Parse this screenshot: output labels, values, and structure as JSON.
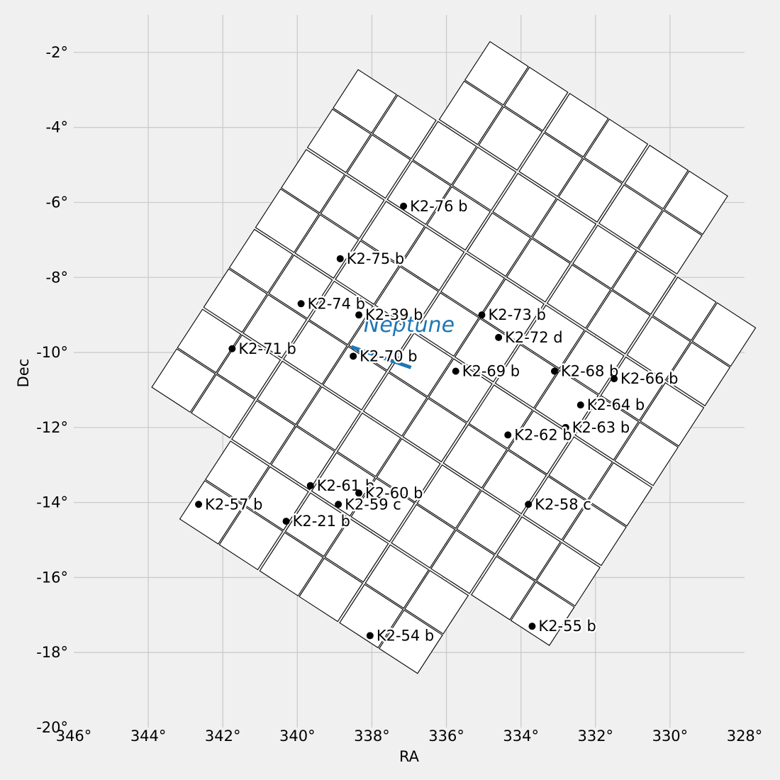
{
  "chart_data": {
    "type": "scatter",
    "title": "",
    "xlabel": "RA",
    "ylabel": "Dec",
    "xlim": [
      346,
      328
    ],
    "ylim": [
      -20,
      -1
    ],
    "x_ticks": [
      346,
      344,
      342,
      340,
      338,
      336,
      334,
      332,
      330,
      328
    ],
    "y_ticks": [
      -2,
      -4,
      -6,
      -8,
      -10,
      -12,
      -14,
      -16,
      -18,
      -20
    ],
    "x_tick_labels": [
      "346°",
      "344°",
      "342°",
      "340°",
      "338°",
      "336°",
      "334°",
      "332°",
      "330°",
      "328°"
    ],
    "y_tick_labels": [
      "-2°",
      "-4°",
      "-6°",
      "-8°",
      "-10°",
      "-12°",
      "-14°",
      "-16°",
      "-18°",
      "-20°"
    ],
    "grid": true,
    "planets": [
      {
        "name": "K2-76 b",
        "ra": 337.15,
        "dec": -6.1
      },
      {
        "name": "K2-75 b",
        "ra": 338.85,
        "dec": -7.5
      },
      {
        "name": "K2-74 b",
        "ra": 339.9,
        "dec": -8.7
      },
      {
        "name": "K2-39 b",
        "ra": 338.35,
        "dec": -9.0
      },
      {
        "name": "K2-73 b",
        "ra": 335.05,
        "dec": -9.0
      },
      {
        "name": "K2-72 d",
        "ra": 334.6,
        "dec": -9.6
      },
      {
        "name": "K2-71 b",
        "ra": 341.75,
        "dec": -9.9
      },
      {
        "name": "K2-70 b",
        "ra": 338.5,
        "dec": -10.1
      },
      {
        "name": "K2-69 b",
        "ra": 335.75,
        "dec": -10.5
      },
      {
        "name": "K2-68 b",
        "ra": 333.1,
        "dec": -10.5
      },
      {
        "name": "K2-66 b",
        "ra": 331.5,
        "dec": -10.7
      },
      {
        "name": "K2-64 b",
        "ra": 332.4,
        "dec": -11.4
      },
      {
        "name": "K2-63 b",
        "ra": 332.8,
        "dec": -12.0
      },
      {
        "name": "K2-62 b",
        "ra": 334.35,
        "dec": -12.2
      },
      {
        "name": "K2-61 b",
        "ra": 339.65,
        "dec": -13.55
      },
      {
        "name": "K2-60 b",
        "ra": 338.35,
        "dec": -13.75
      },
      {
        "name": "K2-59 c",
        "ra": 338.9,
        "dec": -14.05
      },
      {
        "name": "K2-58 c",
        "ra": 333.8,
        "dec": -14.05
      },
      {
        "name": "K2-57 b",
        "ra": 342.65,
        "dec": -14.05
      },
      {
        "name": "K2-21 b",
        "ra": 340.3,
        "dec": -14.5
      },
      {
        "name": "K2-55 b",
        "ra": 333.7,
        "dec": -17.3
      },
      {
        "name": "K2-54 b",
        "ra": 338.05,
        "dec": -17.55
      }
    ],
    "neptune": {
      "label": "Neptune",
      "color": "#1f77b4",
      "track": [
        [
          338.55,
          -9.85
        ],
        [
          336.95,
          -10.4
        ]
      ],
      "label_ra": 337.0,
      "label_dec": -9.45
    },
    "footprint": {
      "center_ra": 336.5,
      "center_dec": -11.2,
      "rotation_deg": 33,
      "chip_size_deg": 1.22,
      "modules": [
        [
          -1,
          3
        ],
        [
          0,
          3
        ],
        [
          1,
          3
        ],
        [
          -2,
          2
        ],
        [
          -1,
          2
        ],
        [
          0,
          2
        ],
        [
          1,
          2
        ],
        [
          2,
          2
        ],
        [
          -2,
          1
        ],
        [
          -1,
          1
        ],
        [
          0,
          1
        ],
        [
          1,
          1
        ],
        [
          2,
          1
        ],
        [
          -2,
          0
        ],
        [
          -1,
          0
        ],
        [
          0,
          0
        ],
        [
          1,
          0
        ],
        [
          2,
          0
        ],
        [
          -2,
          -1
        ],
        [
          -1,
          -1
        ],
        [
          0,
          -1
        ],
        [
          1,
          -1
        ],
        [
          2,
          -1
        ],
        [
          -1,
          -2
        ],
        [
          0,
          -2
        ],
        [
          1,
          -2
        ]
      ]
    },
    "colors": {
      "background": "#f0f0f0",
      "grid": "#cbcbcb",
      "chip_fill": "#ffffff",
      "chip_edge": "#000000",
      "planet_marker": "#000000"
    }
  }
}
